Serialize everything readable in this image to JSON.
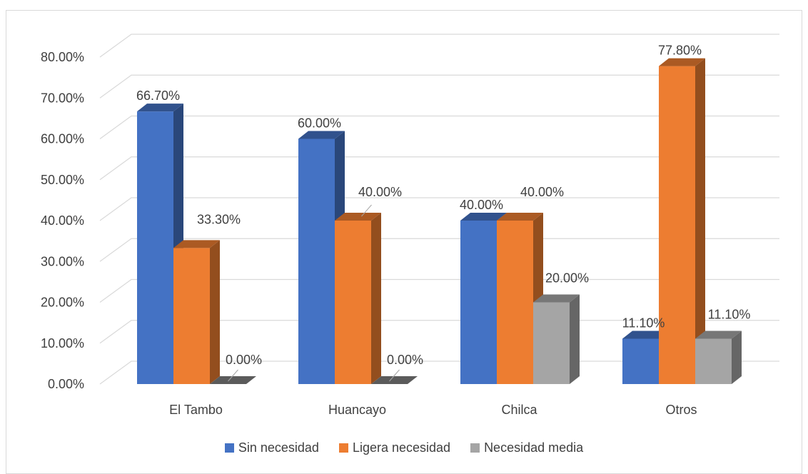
{
  "chart_data": {
    "type": "bar",
    "categories": [
      "El Tambo",
      "Huancayo",
      "Chilca",
      "Otros"
    ],
    "series": [
      {
        "name": "Sin necesidad",
        "values": [
          66.7,
          60.0,
          40.0,
          11.1
        ],
        "labels": [
          "66.70%",
          "60.00%",
          "40.00%",
          "11.10%"
        ],
        "color": "#4472C4"
      },
      {
        "name": "Ligera necesidad",
        "values": [
          33.3,
          40.0,
          40.0,
          77.8
        ],
        "labels": [
          "33.30%",
          "40.00%",
          "40.00%",
          "77.80%"
        ],
        "color": "#ED7D31"
      },
      {
        "name": "Necesidad media",
        "values": [
          0.0,
          0.0,
          20.0,
          11.1
        ],
        "labels": [
          "0.00%",
          "0.00%",
          "20.00%",
          "11.10%"
        ],
        "color": "#A5A5A5"
      }
    ],
    "yticks": [
      "0.00%",
      "10.00%",
      "20.00%",
      "30.00%",
      "40.00%",
      "50.00%",
      "60.00%",
      "70.00%",
      "80.00%"
    ],
    "ylim": [
      0,
      80
    ],
    "grid": true,
    "legend": "bottom",
    "style": "3d-column"
  }
}
